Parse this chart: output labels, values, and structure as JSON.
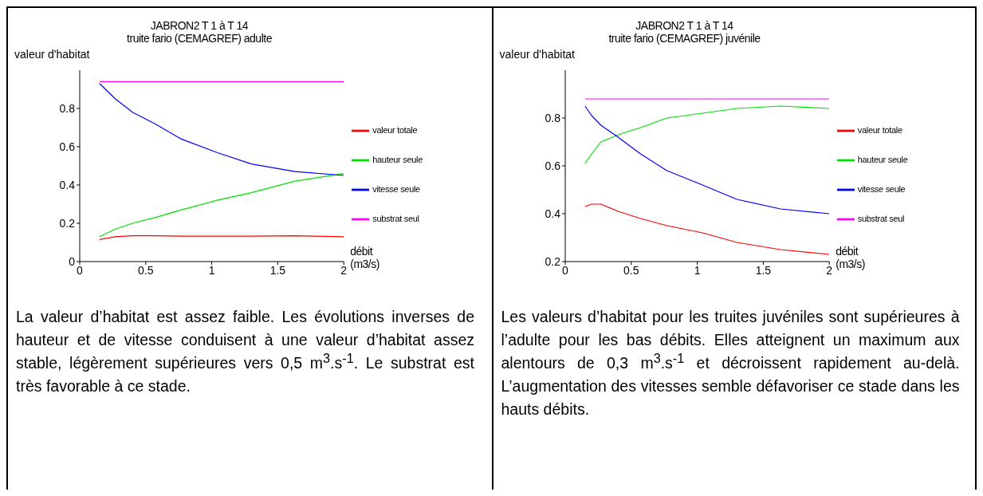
{
  "chart_data": [
    {
      "type": "line",
      "title": "JABRON2 T 1 à T 14",
      "subtitle": "truite fario (CEMAGREF) adulte",
      "xlabel": "débit (m3/s)",
      "ylabel": "valeur d'habitat",
      "legend": "right",
      "x": [
        0.15,
        0.27,
        0.4,
        0.57,
        0.77,
        1.04,
        1.3,
        1.63,
        2.0
      ],
      "series": [
        {
          "name": "valeur totale",
          "color": "#ff0000",
          "values": [
            0.115,
            0.13,
            0.135,
            0.135,
            0.133,
            0.133,
            0.133,
            0.135,
            0.13
          ]
        },
        {
          "name": "hauteur seule",
          "color": "#00e000",
          "values": [
            0.13,
            0.17,
            0.2,
            0.23,
            0.27,
            0.32,
            0.36,
            0.42,
            0.46
          ]
        },
        {
          "name": "vitesse seule",
          "color": "#0000ff",
          "values": [
            0.93,
            0.85,
            0.78,
            0.72,
            0.64,
            0.57,
            0.51,
            0.47,
            0.45
          ]
        },
        {
          "name": "substrat seul",
          "color": "#ff00ff",
          "values": [
            0.94,
            0.94,
            0.94,
            0.94,
            0.94,
            0.94,
            0.94,
            0.94,
            0.94
          ]
        }
      ],
      "xlim": [
        0,
        2
      ],
      "xticks": [
        0,
        0.5,
        1,
        1.5,
        2
      ],
      "ylim": [
        0,
        1
      ],
      "yticks": [
        0,
        0.2,
        0.4,
        0.6,
        0.8
      ],
      "annotations": [
        "La valeur d’habitat est assez faible. Les évolutions inverses de hauteur et de vitesse conduisent à une valeur d’habitat assez stable, légèrement supérieures vers 0,5 m$^{3}$.s$^{-1}$. Le substrat est très favorable à ce stade."
      ]
    },
    {
      "type": "line",
      "title": "JABRON2 T 1 à T 14",
      "subtitle": "truite fario (CEMAGREF) juvénile",
      "xlabel": "débit (m3/s)",
      "ylabel": "valeur d'habitat",
      "legend": "right",
      "x": [
        0.15,
        0.2,
        0.27,
        0.4,
        0.57,
        0.77,
        1.04,
        1.3,
        1.63,
        2.0
      ],
      "series": [
        {
          "name": "valeur totale",
          "color": "#ff0000",
          "values": [
            0.43,
            0.44,
            0.44,
            0.41,
            0.38,
            0.35,
            0.32,
            0.28,
            0.25,
            0.23
          ]
        },
        {
          "name": "hauteur seule",
          "color": "#00e000",
          "values": [
            0.61,
            0.65,
            0.7,
            0.73,
            0.76,
            0.8,
            0.82,
            0.84,
            0.85,
            0.84
          ]
        },
        {
          "name": "vitesse seule",
          "color": "#0000ff",
          "values": [
            0.85,
            0.81,
            0.77,
            0.72,
            0.65,
            0.58,
            0.52,
            0.46,
            0.42,
            0.4
          ]
        },
        {
          "name": "substrat seul",
          "color": "#ff00ff",
          "values": [
            0.88,
            0.88,
            0.88,
            0.88,
            0.88,
            0.88,
            0.88,
            0.88,
            0.88,
            0.88
          ]
        }
      ],
      "xlim": [
        0,
        2
      ],
      "xticks": [
        0,
        0.5,
        1,
        1.5,
        2
      ],
      "ylim": [
        0.2,
        1
      ],
      "yticks": [
        0.2,
        0.4,
        0.6,
        0.8
      ],
      "annotations": [
        "Les valeurs d’habitat pour les truites juvéniles sont supérieures à l’adulte pour les bas débits. Elles atteignent un maximum aux alentours de 0,3 m$^{3}$.s$^{-1}$ et décroissent rapidement au-delà. L’augmentation des vitesses semble défavoriser ce stade dans les hauts débits."
      ]
    }
  ]
}
